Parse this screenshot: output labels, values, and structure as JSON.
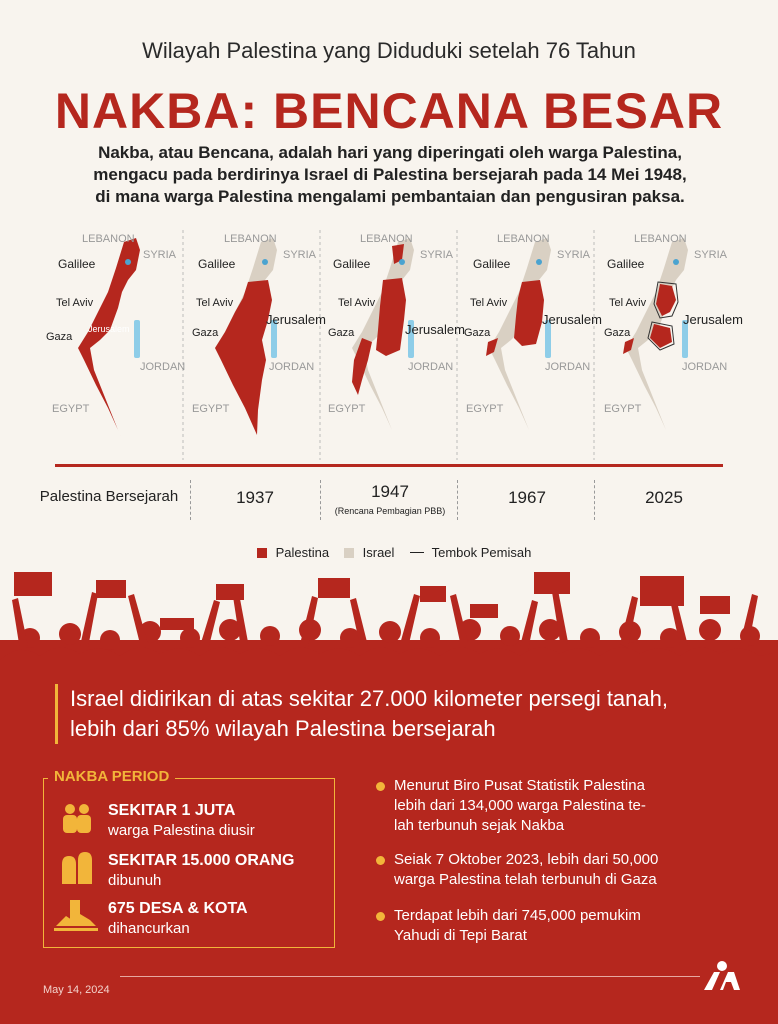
{
  "subtitle": "Wilayah Palestina yang Diduduki setelah 76 Tahun",
  "title": "NAKBA: BENCANA BESAR",
  "intro": [
    "Nakba, atau Bencana, adalah hari yang diperingati oleh warga Palestina,",
    "mengacu pada berdirinya Israel di Palestina bersejarah pada 14 Mei 1948,",
    "di mana warga Palestina mengalami pembantaian dan pengusiran paksa."
  ],
  "map_labels": {
    "lebanon": "LEBANON",
    "syria": "SYRIA",
    "galilee": "Galilee",
    "tel_aviv": "Tel Aviv",
    "gaza": "Gaza",
    "jerusalem": "Jerusalem",
    "jordan": "JORDAN",
    "egypt": "EGYPT"
  },
  "periods": [
    {
      "label": "Palestina Bersejarah",
      "note": ""
    },
    {
      "label": "1937",
      "note": ""
    },
    {
      "label": "1947",
      "note": "(Rencana Pembagian PBB)"
    },
    {
      "label": "1967",
      "note": ""
    },
    {
      "label": "2025",
      "note": ""
    }
  ],
  "legend": {
    "palestine": "Palestina",
    "israel": "Israel",
    "wall": "Tembok Pemisah"
  },
  "colors": {
    "red": "#b5271e",
    "beige": "#d9d0c3",
    "water": "#8ecde8",
    "gold": "#f2b53a"
  },
  "headline": [
    "Israel didirikan di atas sekitar 27.000 kilometer persegi tanah,",
    "lebih dari 85% wilayah Palestina bersejarah"
  ],
  "nakba_period": {
    "label": "NAKBA PERIOD",
    "stats": [
      {
        "title": "SEKITAR 1 JUTA",
        "sub": "warga Palestina diusir",
        "icon": "people-icon"
      },
      {
        "title": "SEKITAR 15.000 ORANG",
        "sub": "dibunuh",
        "icon": "gravestones-icon"
      },
      {
        "title": "675 DESA & KOTA",
        "sub": "dihancurkan",
        "icon": "destroyed-village-icon"
      }
    ]
  },
  "facts": [
    [
      "Menurut Biro Pusat Statistik Palestina",
      "lebih dari 134,000 warga Palestina te-",
      "lah terbunuh sejak Nakba"
    ],
    [
      "Seiak 7 Oktober 2023, lebih dari 50,000",
      "warga Palestina telah terbunuh di Gaza"
    ],
    [
      "Terdapat lebih dari 745,000 pemukim",
      "Yahudi di Tepi Barat"
    ]
  ],
  "date": "May 14, 2024",
  "logo_text": "AA"
}
